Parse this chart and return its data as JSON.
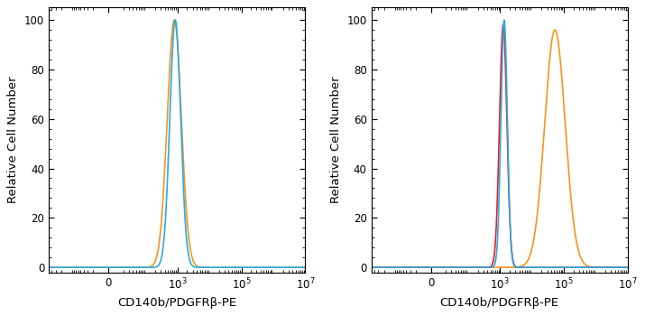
{
  "xlabel": "CD140b/PDGFRβ-PE",
  "ylabel": "Relative Cell Number",
  "ylim": [
    -2,
    105
  ],
  "yticks": [
    0,
    20,
    40,
    60,
    80,
    100
  ],
  "background_color": "#ffffff",
  "colors": {
    "blue": "#29ABE2",
    "orange": "#F7941D",
    "red": "#ED1C24"
  },
  "left_plot": {
    "blue_peak_log": 2.93,
    "blue_sigma": 0.17,
    "blue_amplitude": 100,
    "orange_peak_log": 2.9,
    "orange_sigma": 0.22,
    "orange_amplitude": 100
  },
  "right_plot": {
    "blue_peak_log": 3.13,
    "blue_sigma": 0.1,
    "blue_amplitude": 100,
    "red_peak_log": 3.1,
    "red_sigma": 0.115,
    "red_amplitude": 98,
    "orange_peak_log": 4.72,
    "orange_sigma": 0.32,
    "orange_amplitude": 96
  },
  "linthresh": 10,
  "linscale": 0.15,
  "xlim_left": [
    -500,
    10000000.0
  ],
  "xlim_right": [
    -500,
    10000000.0
  ],
  "xticks_left": [
    0,
    1000.0,
    100000.0,
    10000000.0
  ],
  "xticks_right": [
    0,
    1000.0,
    100000.0,
    10000000.0
  ]
}
